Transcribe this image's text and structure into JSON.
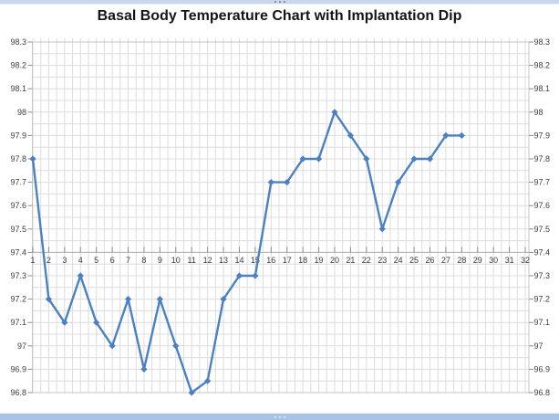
{
  "window": {
    "top_edge_color": "#c7d8ee",
    "bottom_edge_color": "#a9c3e6"
  },
  "chart_data": {
    "type": "line",
    "title": "Basal Body Temperature Chart with Implantation Dip",
    "xlabel": "",
    "ylabel": "",
    "x_labels": [
      "1",
      "2",
      "3",
      "4",
      "5",
      "6",
      "7",
      "8",
      "9",
      "10",
      "11",
      "12",
      "13",
      "14",
      "15",
      "16",
      "17",
      "18",
      "19",
      "20",
      "21",
      "22",
      "23",
      "24",
      "25",
      "26",
      "27",
      "28",
      "29",
      "30",
      "31",
      "32"
    ],
    "series": [
      {
        "values": [
          97.8,
          97.2,
          97.1,
          97.3,
          97.1,
          97.0,
          97.2,
          96.9,
          97.2,
          97.0,
          96.8,
          96.85,
          97.2,
          97.3,
          97.3,
          97.7,
          97.7,
          97.8,
          97.8,
          98.0,
          97.9,
          97.8,
          97.5,
          97.7,
          97.8,
          97.8,
          97.9,
          97.9
        ]
      }
    ],
    "ylim": [
      96.8,
      98.3
    ],
    "y_tick_labels": [
      "98.3",
      "98.2",
      "98.1",
      "98",
      "97.9",
      "97.8",
      "97.7",
      "97.6",
      "97.5",
      "97.4",
      "97.3",
      "97.2",
      "97.1",
      "97",
      "96.9",
      "96.8"
    ],
    "y_major_step": 0.1,
    "y_minor_step": 0.05,
    "x_minor_divisions_per_category": 2,
    "x_axis_cross_value": 97.4,
    "dual_y_axis_labels": true,
    "legend": "none",
    "grid": "on",
    "marker": "diamond",
    "colors": {
      "series": "#4b80c3",
      "grid": "#dcdcdc",
      "plot_border": "#c6c6c6",
      "axis_line": "#aeaeae",
      "tick": "#8c8c8c",
      "label": "#3d3d3d",
      "title": "#151515"
    }
  }
}
